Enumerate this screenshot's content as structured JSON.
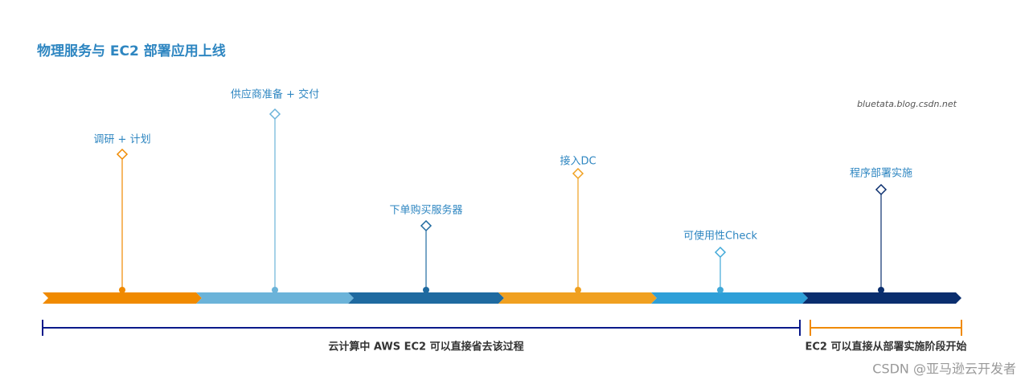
{
  "header": {
    "title": "物理服务与 EC2 部署应用上线",
    "source": "bluetata.blog.csdn.net"
  },
  "steps": [
    {
      "label": "调研 + 计划"
    },
    {
      "label": "供应商准备 + 交付"
    },
    {
      "label": "下单购买服务器"
    },
    {
      "label": "接入DC"
    },
    {
      "label": "可使用性Check"
    },
    {
      "label": "程序部署实施"
    }
  ],
  "spans": [
    {
      "label": "云计算中 AWS EC2 可以直接省去该过程"
    },
    {
      "label": "EC2 可以直接从部署实施阶段开始"
    }
  ],
  "watermark": "CSDN @亚马逊云开发者"
}
